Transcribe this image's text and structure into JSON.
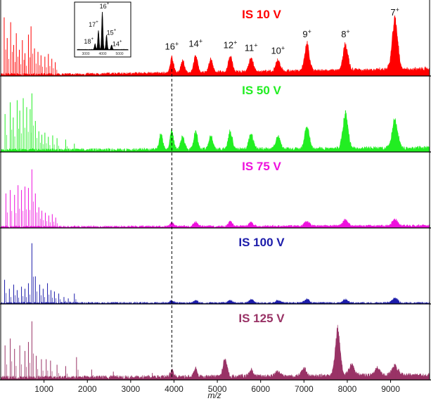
{
  "chart_data": {
    "type": "line",
    "title": "",
    "xlabel": "m/z",
    "ylabel": "",
    "xlim": [
      0,
      9900
    ],
    "x_ticks": [
      1000,
      2000,
      3000,
      4000,
      5000,
      6000,
      7000,
      8000,
      9000
    ],
    "x_tick_labels": [
      "1000",
      "2000",
      "3000",
      "4000",
      "5000",
      "6000",
      "7000",
      "8000",
      "9000"
    ],
    "reference_line_mz": 3950,
    "grid": false,
    "legend": "none",
    "panels": [
      {
        "label": "IS  10 V",
        "color": "#ff0000",
        "background": {
          "amplitude": 0.04,
          "rise_start": 1500,
          "rise_end": 9800,
          "rise_amount": 0.1
        },
        "lowmass_spikes": [
          [
            80,
            0.85
          ],
          [
            150,
            0.55
          ],
          [
            230,
            0.78
          ],
          [
            300,
            0.45
          ],
          [
            360,
            0.62
          ],
          [
            430,
            0.38
          ],
          [
            500,
            0.52
          ],
          [
            560,
            0.33
          ],
          [
            640,
            0.6
          ],
          [
            700,
            0.72
          ],
          [
            780,
            0.4
          ],
          [
            860,
            0.35
          ],
          [
            930,
            0.3
          ],
          [
            1020,
            0.28
          ],
          [
            1100,
            0.32
          ],
          [
            1180,
            0.25
          ],
          [
            1260,
            0.2
          ]
        ],
        "charge_state_peaks": [
          {
            "mz": 3950,
            "height": 0.24,
            "label": "16+"
          },
          {
            "mz": 4200,
            "height": 0.2,
            "label": ""
          },
          {
            "mz": 4500,
            "height": 0.28,
            "label": "14+"
          },
          {
            "mz": 4850,
            "height": 0.2,
            "label": ""
          },
          {
            "mz": 5300,
            "height": 0.26,
            "label": "12+"
          },
          {
            "mz": 5780,
            "height": 0.22,
            "label": "11+"
          },
          {
            "mz": 6400,
            "height": 0.18,
            "label": "10+"
          },
          {
            "mz": 7070,
            "height": 0.42,
            "label": "9+"
          },
          {
            "mz": 7960,
            "height": 0.42,
            "label": "8+"
          },
          {
            "mz": 9100,
            "height": 0.8,
            "label": "7+"
          }
        ]
      },
      {
        "label": "IS  50 V",
        "color": "#22ee22",
        "background": {
          "amplitude": 0.05,
          "rise_start": 1500,
          "rise_end": 9800,
          "rise_amount": 0.04
        },
        "lowmass_spikes": [
          [
            100,
            0.55
          ],
          [
            220,
            0.72
          ],
          [
            290,
            0.5
          ],
          [
            380,
            0.75
          ],
          [
            440,
            0.6
          ],
          [
            520,
            0.78
          ],
          [
            600,
            0.65
          ],
          [
            680,
            0.62
          ],
          [
            720,
            0.85
          ],
          [
            800,
            0.45
          ],
          [
            880,
            0.3
          ],
          [
            950,
            0.25
          ],
          [
            1020,
            0.28
          ],
          [
            1100,
            0.22
          ],
          [
            1200,
            0.24
          ],
          [
            1300,
            0.2
          ],
          [
            1500,
            0.18
          ],
          [
            1700,
            0.12
          ]
        ],
        "charge_state_peaks": [
          {
            "mz": 3700,
            "height": 0.25,
            "label": ""
          },
          {
            "mz": 3950,
            "height": 0.3,
            "label": ""
          },
          {
            "mz": 4200,
            "height": 0.22,
            "label": ""
          },
          {
            "mz": 4500,
            "height": 0.3,
            "label": ""
          },
          {
            "mz": 4850,
            "height": 0.22,
            "label": ""
          },
          {
            "mz": 5300,
            "height": 0.28,
            "label": ""
          },
          {
            "mz": 5780,
            "height": 0.25,
            "label": ""
          },
          {
            "mz": 6400,
            "height": 0.2,
            "label": ""
          },
          {
            "mz": 7070,
            "height": 0.35,
            "label": ""
          },
          {
            "mz": 7960,
            "height": 0.58,
            "label": ""
          },
          {
            "mz": 9100,
            "height": 0.45,
            "label": ""
          }
        ]
      },
      {
        "label": "IS  75 V",
        "color": "#ee11dd",
        "background": {
          "amplitude": 0.03,
          "rise_start": 1500,
          "rise_end": 9800,
          "rise_amount": 0.02
        },
        "lowmass_spikes": [
          [
            120,
            0.5
          ],
          [
            220,
            0.55
          ],
          [
            320,
            0.48
          ],
          [
            400,
            0.62
          ],
          [
            480,
            0.55
          ],
          [
            560,
            0.6
          ],
          [
            640,
            0.58
          ],
          [
            720,
            0.85
          ],
          [
            800,
            0.5
          ],
          [
            880,
            0.3
          ],
          [
            950,
            0.25
          ],
          [
            1030,
            0.22
          ],
          [
            1110,
            0.18
          ],
          [
            1190,
            0.2
          ],
          [
            1270,
            0.15
          ]
        ],
        "charge_state_peaks": [
          {
            "mz": 3950,
            "height": 0.06,
            "label": ""
          },
          {
            "mz": 4500,
            "height": 0.07,
            "label": ""
          },
          {
            "mz": 5300,
            "height": 0.07,
            "label": ""
          },
          {
            "mz": 5780,
            "height": 0.06,
            "label": ""
          },
          {
            "mz": 7070,
            "height": 0.08,
            "label": ""
          },
          {
            "mz": 7960,
            "height": 0.1,
            "label": ""
          },
          {
            "mz": 9100,
            "height": 0.1,
            "label": ""
          }
        ]
      },
      {
        "label": "IS 100 V",
        "color": "#1c1caa",
        "background": {
          "amplitude": 0.025,
          "rise_start": 1500,
          "rise_end": 9800,
          "rise_amount": 0.0
        },
        "lowmass_spikes": [
          [
            90,
            0.35
          ],
          [
            200,
            0.22
          ],
          [
            300,
            0.28
          ],
          [
            380,
            0.2
          ],
          [
            480,
            0.25
          ],
          [
            560,
            0.22
          ],
          [
            640,
            0.3
          ],
          [
            720,
            0.88
          ],
          [
            800,
            0.4
          ],
          [
            900,
            0.28
          ],
          [
            980,
            0.22
          ],
          [
            1080,
            0.3
          ],
          [
            1160,
            0.2
          ],
          [
            1240,
            0.18
          ],
          [
            1340,
            0.15
          ],
          [
            1460,
            0.1
          ],
          [
            1560,
            0.08
          ],
          [
            1700,
            0.15
          ]
        ],
        "charge_state_peaks": [
          {
            "mz": 3950,
            "height": 0.04,
            "label": ""
          },
          {
            "mz": 4500,
            "height": 0.04,
            "label": ""
          },
          {
            "mz": 5300,
            "height": 0.04,
            "label": ""
          },
          {
            "mz": 5780,
            "height": 0.05,
            "label": ""
          },
          {
            "mz": 6400,
            "height": 0.04,
            "label": ""
          },
          {
            "mz": 7070,
            "height": 0.06,
            "label": ""
          },
          {
            "mz": 7960,
            "height": 0.06,
            "label": ""
          },
          {
            "mz": 9100,
            "height": 0.08,
            "label": ""
          }
        ]
      },
      {
        "label": "IS 125 V",
        "color": "#993366",
        "background": {
          "amplitude": 0.06,
          "rise_start": 1500,
          "rise_end": 9800,
          "rise_amount": 0.05
        },
        "lowmass_spikes": [
          [
            100,
            0.5
          ],
          [
            220,
            0.6
          ],
          [
            320,
            0.45
          ],
          [
            440,
            0.5
          ],
          [
            560,
            0.42
          ],
          [
            640,
            0.55
          ],
          [
            720,
            0.85
          ],
          [
            820,
            0.35
          ],
          [
            940,
            0.3
          ],
          [
            1050,
            0.3
          ],
          [
            1150,
            0.28
          ],
          [
            1300,
            0.22
          ],
          [
            1500,
            0.2
          ],
          [
            1750,
            0.33
          ],
          [
            2100,
            0.15
          ],
          [
            2600,
            0.12
          ],
          [
            3500,
            0.1
          ]
        ],
        "charge_state_peaks": [
          {
            "mz": 3950,
            "height": 0.1,
            "label": ""
          },
          {
            "mz": 4500,
            "height": 0.12,
            "label": ""
          },
          {
            "mz": 5180,
            "height": 0.28,
            "label": ""
          },
          {
            "mz": 5780,
            "height": 0.1,
            "label": ""
          },
          {
            "mz": 6400,
            "height": 0.08,
            "label": ""
          },
          {
            "mz": 7000,
            "height": 0.12,
            "label": ""
          },
          {
            "mz": 7780,
            "height": 0.72,
            "label": ""
          },
          {
            "mz": 8100,
            "height": 0.18,
            "label": ""
          },
          {
            "mz": 8700,
            "height": 0.12,
            "label": ""
          },
          {
            "mz": 9100,
            "height": 0.15,
            "label": ""
          }
        ]
      }
    ],
    "inset": {
      "xlim": [
        2500,
        5500
      ],
      "x_ticks": [
        3000,
        4000,
        5000
      ],
      "x_tick_labels": [
        "3000",
        "4000",
        "5000"
      ],
      "peaks": [
        {
          "mz": 3550,
          "height": 0.15,
          "label": "18+"
        },
        {
          "mz": 3750,
          "height": 0.5,
          "label": "17+"
        },
        {
          "mz": 3980,
          "height": 1.0,
          "label": "16+"
        },
        {
          "mz": 4230,
          "height": 0.38,
          "label": "15+"
        },
        {
          "mz": 4530,
          "height": 0.12,
          "label": "14+"
        }
      ]
    }
  }
}
